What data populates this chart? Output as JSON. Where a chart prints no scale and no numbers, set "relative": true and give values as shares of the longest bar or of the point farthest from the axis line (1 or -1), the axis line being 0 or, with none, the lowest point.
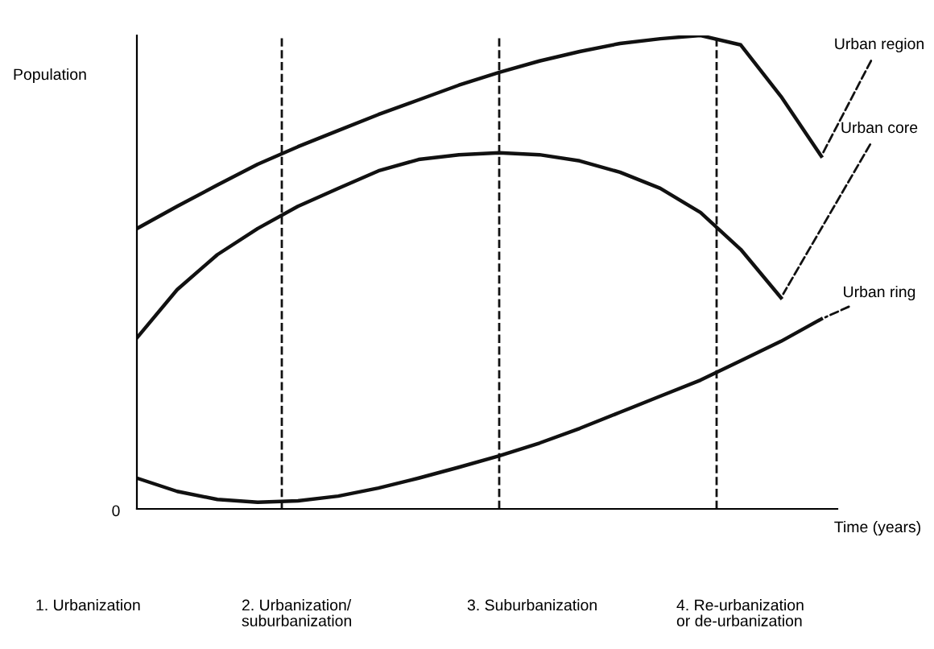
{
  "chart_data": {
    "type": "line",
    "relative": true,
    "ylabel": "Population",
    "xlabel": "Time (years)",
    "categories": [
      null,
      null,
      null,
      null,
      null,
      null,
      null,
      null,
      null,
      null,
      null,
      null,
      null,
      null,
      null,
      null,
      null,
      null
    ],
    "series": [
      {
        "name": "Urban region",
        "color": "#111111",
        "values": [
          0.592,
          0.639,
          0.684,
          0.728,
          0.765,
          0.799,
          0.833,
          0.864,
          0.895,
          0.922,
          0.946,
          0.966,
          0.983,
          0.993,
          1,
          0.98,
          0.871,
          0.745
        ]
      },
      {
        "name": "Urban core",
        "color": "#111111",
        "values": [
          0.361,
          0.463,
          0.537,
          0.592,
          0.639,
          0.677,
          0.714,
          0.738,
          0.748,
          0.752,
          0.748,
          0.735,
          0.711,
          0.677,
          0.626,
          0.548,
          0.446,
          null
        ]
      },
      {
        "name": "Urban ring",
        "color": "#111111",
        "values": [
          0.065,
          0.037,
          0.02,
          0.014,
          0.017,
          0.027,
          0.044,
          0.065,
          0.088,
          0.112,
          0.139,
          0.17,
          0.204,
          0.238,
          0.272,
          0.313,
          0.354,
          0.401
        ]
      }
    ],
    "annotations": [
      "0",
      "1. Urbanization",
      "2. Urbanization/\nsuburbanization",
      "3. Suburbanization",
      "4. Re-urbanization\nor de-urbanization"
    ],
    "line_style": "solid",
    "marker": "none",
    "legend": false
  }
}
